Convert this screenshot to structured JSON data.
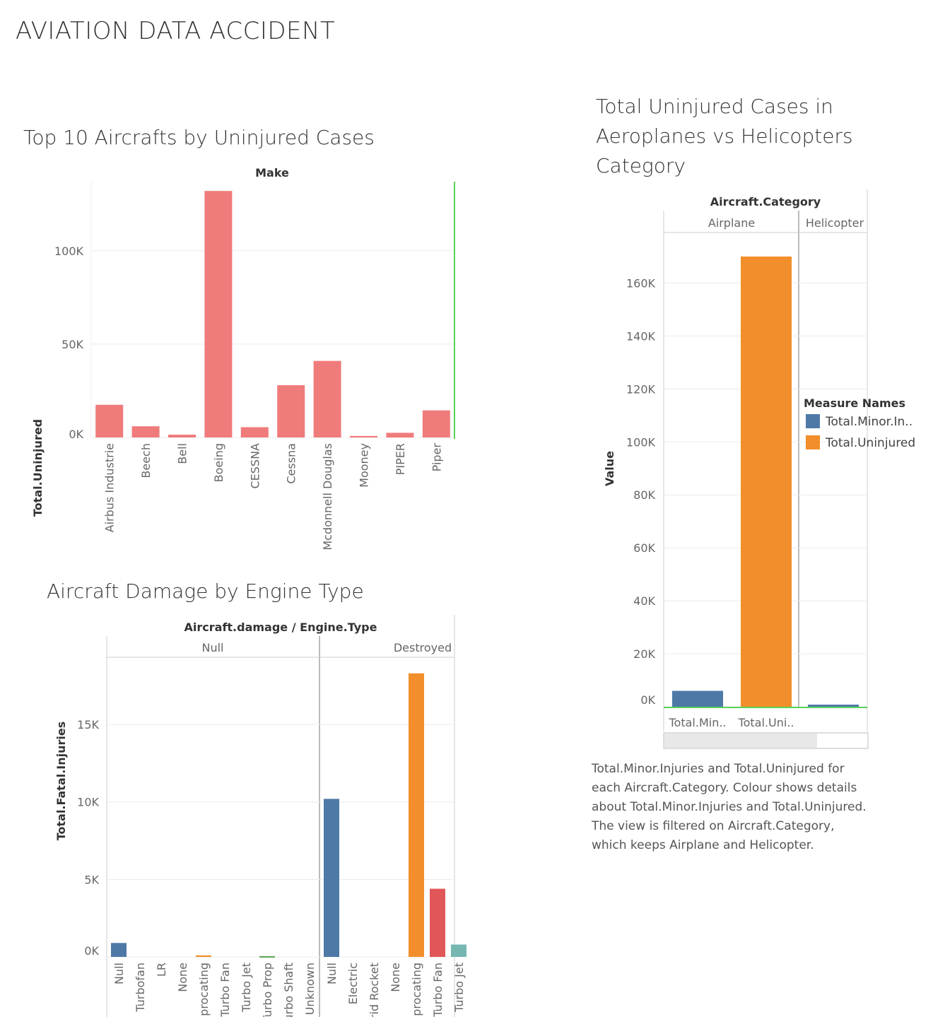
{
  "page": {
    "title": "AVIATION DATA ACCIDENT"
  },
  "chart_data": [
    {
      "id": "make",
      "type": "bar",
      "title": "Top 10 Aircrafts by Uninjured Cases",
      "header": "Make",
      "ylabel": "Total.Uninjured",
      "categories": [
        "Airbus Industrie",
        "Beech",
        "Bell",
        "Boeing",
        "CESSNA",
        "Cessna",
        "Mcdonnell Douglas",
        "Mooney",
        "PIPER",
        "Piper"
      ],
      "values": [
        17500,
        6000,
        1500,
        132000,
        5500,
        28000,
        41000,
        800,
        2500,
        14500
      ],
      "yticks": [
        0,
        50000,
        100000
      ],
      "ytick_labels": [
        "0K",
        "50K",
        "100K"
      ],
      "ylim": [
        0,
        137000
      ],
      "color": "#f07b7b",
      "grid": true
    },
    {
      "id": "category",
      "type": "bar",
      "title": "Total Uninjured Cases in Aeroplanes vs Helicopters Category",
      "header": "Aircraft.Category",
      "panels": [
        "Airplane",
        "Helicopter"
      ],
      "ylabel": "Value",
      "xlabels": [
        "Total.Min..",
        "Total.Uni.."
      ],
      "series": [
        {
          "name": "Total.Minor.In..",
          "color": "#4e79a7",
          "values": [
            6000,
            800
          ]
        },
        {
          "name": "Total.Uninjured",
          "color": "#f28e2b",
          "values": [
            170000,
            null
          ]
        }
      ],
      "yticks": [
        0,
        20000,
        40000,
        60000,
        80000,
        100000,
        120000,
        140000,
        160000
      ],
      "ytick_labels": [
        "0K",
        "20K",
        "40K",
        "60K",
        "80K",
        "100K",
        "120K",
        "140K",
        "160K"
      ],
      "legend": {
        "title": "Measure Names",
        "placement": "right"
      },
      "description": "Total.Minor.Injuries and Total.Uninjured for each Aircraft.Category.  Colour shows details about Total.Minor.Injuries and Total.Uninjured. The view is filtered on Aircraft.Category, which keeps Airplane and Helicopter."
    },
    {
      "id": "damage",
      "type": "bar",
      "title": "Aircraft Damage by Engine Type",
      "header": "Aircraft.damage / Engine.Type",
      "ylabel": "Total.Fatal.Injuries",
      "yticks": [
        0,
        5000,
        10000,
        15000
      ],
      "ytick_labels": [
        "0K",
        "5K",
        "10K",
        "15K"
      ],
      "panels": [
        {
          "label": "Null",
          "categories": [
            "Null",
            "Turbofan",
            "LR",
            "None",
            "Reciprocating",
            "Turbo Fan",
            "Turbo Jet",
            "Turbo Prop",
            "Turbo Shaft",
            "Unknown"
          ],
          "values": [
            900,
            0,
            0,
            0,
            100,
            0,
            0,
            50,
            0,
            0
          ],
          "colors": [
            "#4e79a7",
            "#4e79a7",
            "#4e79a7",
            "#4e79a7",
            "#f28e2b",
            "#e15759",
            "#76b7b2",
            "#59a14f",
            "#edc948",
            "#b07aa1"
          ]
        },
        {
          "label": "Destroyed",
          "categories": [
            "Null",
            "Electric",
            "Hybrid Rocket",
            "None",
            "Reciprocating",
            "Turbo Fan",
            "Turbo Jet"
          ],
          "values": [
            10200,
            0,
            0,
            0,
            18300,
            4400,
            800
          ],
          "colors": [
            "#4e79a7",
            "#4e79a7",
            "#4e79a7",
            "#4e79a7",
            "#f28e2b",
            "#e15759",
            "#76b7b2"
          ]
        }
      ]
    }
  ]
}
